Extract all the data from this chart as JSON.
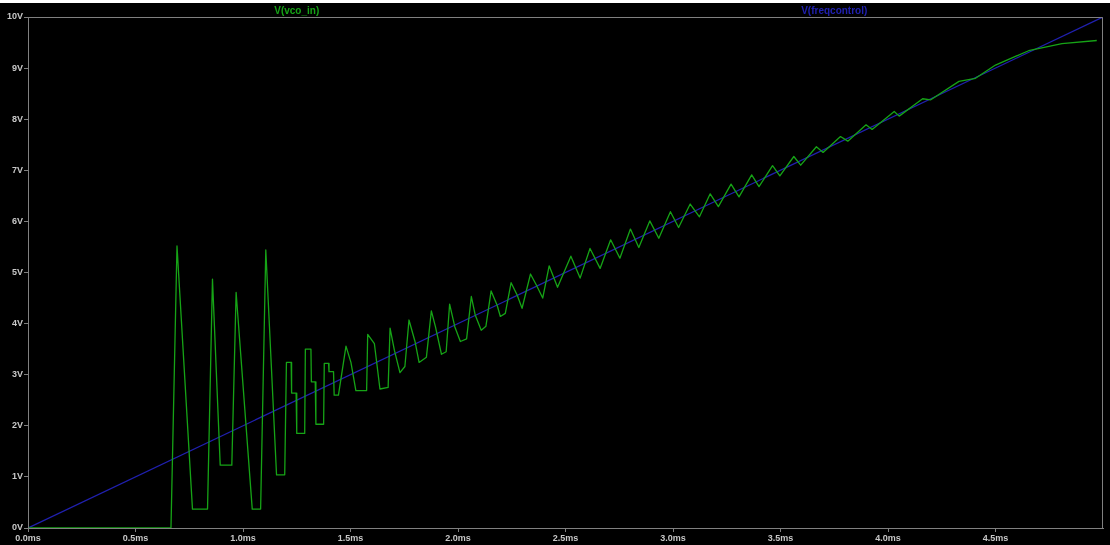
{
  "chart_data": {
    "type": "line",
    "legend": "top",
    "marker": "none",
    "line_style": "solid",
    "xlim": [
      0,
      5
    ],
    "ylim": [
      0,
      10
    ],
    "xticks": [
      {
        "value": 0,
        "label": "0.0ms"
      },
      {
        "value": 0.5,
        "label": "0.5ms"
      },
      {
        "value": 1,
        "label": "1.0ms"
      },
      {
        "value": 1.5,
        "label": "1.5ms"
      },
      {
        "value": 2,
        "label": "2.0ms"
      },
      {
        "value": 2.5,
        "label": "2.5ms"
      },
      {
        "value": 3,
        "label": "3.0ms"
      },
      {
        "value": 3.5,
        "label": "3.5ms"
      },
      {
        "value": 4,
        "label": "4.0ms"
      },
      {
        "value": 4.5,
        "label": "4.5ms"
      }
    ],
    "yticks": [
      {
        "value": 0,
        "label": "0V"
      },
      {
        "value": 1,
        "label": "1V"
      },
      {
        "value": 2,
        "label": "2V"
      },
      {
        "value": 3,
        "label": "3V"
      },
      {
        "value": 4,
        "label": "4V"
      },
      {
        "value": 5,
        "label": "5V"
      },
      {
        "value": 6,
        "label": "6V"
      },
      {
        "value": 7,
        "label": "7V"
      },
      {
        "value": 8,
        "label": "8V"
      },
      {
        "value": 9,
        "label": "9V"
      },
      {
        "value": 10,
        "label": "10V"
      }
    ],
    "series": [
      {
        "name": "V(vco_in)",
        "color": "#16a316",
        "x": [
          0,
          0.665,
          0.693,
          0.765,
          0.835,
          0.858,
          0.894,
          0.948,
          0.968,
          1.043,
          1.082,
          1.106,
          1.156,
          1.194,
          1.202,
          1.224,
          1.226,
          1.247,
          1.25,
          1.287,
          1.29,
          1.316,
          1.318,
          1.336,
          1.339,
          1.375,
          1.378,
          1.398,
          1.4,
          1.421,
          1.424,
          1.444,
          1.479,
          1.502,
          1.525,
          1.575,
          1.58,
          1.611,
          1.637,
          1.675,
          1.684,
          1.704,
          1.73,
          1.753,
          1.772,
          1.8,
          1.819,
          1.853,
          1.876,
          1.895,
          1.923,
          1.945,
          1.961,
          1.985,
          2.011,
          2.04,
          2.062,
          2.08,
          2.108,
          2.13,
          2.154,
          2.182,
          2.197,
          2.22,
          2.247,
          2.275,
          2.298,
          2.337,
          2.365,
          2.394,
          2.424,
          2.463,
          2.525,
          2.568,
          2.614,
          2.661,
          2.71,
          2.753,
          2.802,
          2.841,
          2.892,
          2.934,
          2.988,
          3.026,
          3.08,
          3.123,
          3.173,
          3.211,
          3.27,
          3.307,
          3.366,
          3.4,
          3.463,
          3.497,
          3.562,
          3.594,
          3.667,
          3.698,
          3.779,
          3.813,
          3.898,
          3.926,
          4.029,
          4.052,
          4.161,
          4.199,
          4.33,
          4.407,
          4.5,
          4.654,
          4.809,
          4.971
        ],
        "values": [
          0,
          0,
          5.52,
          0.37,
          0.37,
          4.87,
          1.23,
          1.23,
          4.61,
          0.37,
          0.37,
          5.44,
          1.04,
          1.04,
          3.24,
          3.24,
          2.64,
          2.64,
          1.85,
          1.85,
          3.5,
          3.5,
          2.86,
          2.86,
          2.03,
          2.03,
          3.22,
          3.22,
          3.06,
          3.06,
          2.6,
          2.6,
          3.56,
          3.24,
          2.69,
          2.69,
          3.79,
          3.61,
          2.72,
          2.75,
          3.91,
          3.48,
          3.04,
          3.16,
          4.07,
          3.65,
          3.24,
          3.34,
          4.25,
          3.94,
          3.4,
          3.45,
          4.38,
          3.94,
          3.65,
          3.7,
          4.53,
          4.17,
          3.87,
          3.95,
          4.64,
          4.36,
          4.14,
          4.2,
          4.8,
          4.56,
          4.3,
          4.97,
          4.75,
          4.5,
          5.13,
          4.71,
          5.32,
          4.89,
          5.47,
          5.08,
          5.64,
          5.28,
          5.85,
          5.49,
          6.01,
          5.67,
          6.19,
          5.88,
          6.34,
          6.09,
          6.54,
          6.29,
          6.73,
          6.48,
          6.91,
          6.68,
          7.09,
          6.89,
          7.27,
          7.1,
          7.46,
          7.35,
          7.66,
          7.57,
          7.89,
          7.8,
          8.15,
          8.06,
          8.4,
          8.38,
          8.74,
          8.8,
          9.06,
          9.34,
          9.48,
          9.54
        ]
      },
      {
        "name": "V(freqcontrol)",
        "color": "#2020b0",
        "x": [
          0,
          5
        ],
        "values": [
          0,
          10
        ]
      }
    ]
  }
}
